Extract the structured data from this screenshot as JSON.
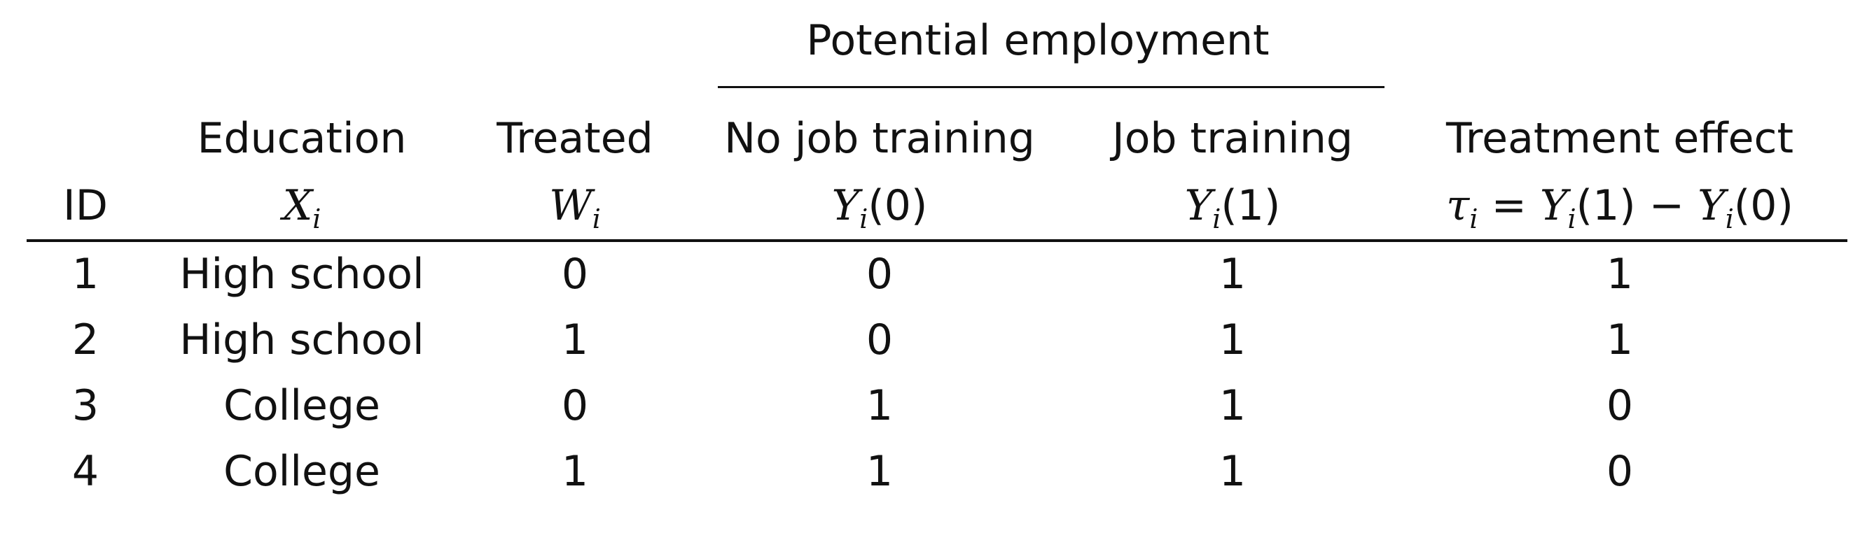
{
  "table": {
    "group_header": "Potential employment",
    "headers": {
      "id": {
        "line1": "",
        "line2": "ID"
      },
      "education": {
        "line1": "Education",
        "var": "X",
        "sub": "i"
      },
      "treated": {
        "line1": "Treated",
        "var": "W",
        "sub": "i"
      },
      "no_training": {
        "line1": "No job training",
        "var": "Y",
        "sub": "i",
        "arg": "(0)"
      },
      "training": {
        "line1": "Job training",
        "var": "Y",
        "sub": "i",
        "arg": "(1)"
      },
      "effect": {
        "line1": "Treatment effect",
        "tau": "τ",
        "tau_sub": "i",
        "eq": " = ",
        "y1": "Y",
        "y1_sub": "i",
        "y1_arg": "(1)",
        "minus": " − ",
        "y0": "Y",
        "y0_sub": "i",
        "y0_arg": "(0)"
      }
    },
    "rows": [
      {
        "id": "1",
        "education": "High school",
        "treated": "0",
        "y0": "0",
        "y1": "1",
        "tau": "1"
      },
      {
        "id": "2",
        "education": "High school",
        "treated": "1",
        "y0": "0",
        "y1": "1",
        "tau": "1"
      },
      {
        "id": "3",
        "education": "College",
        "treated": "0",
        "y0": "1",
        "y1": "1",
        "tau": "0"
      },
      {
        "id": "4",
        "education": "College",
        "treated": "1",
        "y0": "1",
        "y1": "1",
        "tau": "0"
      }
    ]
  }
}
